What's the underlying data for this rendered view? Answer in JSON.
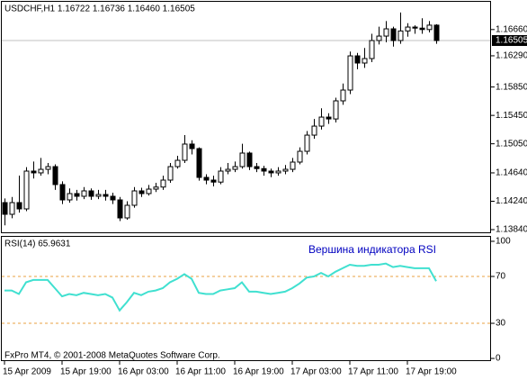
{
  "chart_data": [
    {
      "type": "candlestick",
      "title": "USDCHF,H1  1.16722 1.16736 1.16460 1.16505",
      "categories": [
        "15 Apr 2009",
        null,
        null,
        null,
        null,
        null,
        null,
        null,
        "15 Apr 19:00",
        null,
        null,
        null,
        null,
        null,
        null,
        null,
        "16 Apr 03:00",
        null,
        null,
        null,
        null,
        null,
        null,
        null,
        "16 Apr 11:00",
        null,
        null,
        null,
        null,
        null,
        null,
        null,
        "16 Apr 19:00",
        null,
        null,
        null,
        null,
        null,
        null,
        null,
        "17 Apr 03:00",
        null,
        null,
        null,
        null,
        null,
        null,
        null,
        "17 Apr 11:00",
        null,
        null,
        null,
        null,
        null,
        null,
        null,
        "17 Apr 19:00",
        null,
        null,
        null,
        null
      ],
      "open": [
        1.14221,
        1.14056,
        1.14221,
        1.14132,
        1.14665,
        1.1464,
        1.1469,
        1.14728,
        1.14475,
        1.14259,
        1.14348,
        1.1431,
        1.14386,
        1.1431,
        1.14335,
        1.1431,
        1.14259,
        1.14005,
        1.14183,
        1.14386,
        1.14348,
        1.14411,
        1.1444,
        1.14538,
        1.14728,
        1.14817,
        1.15046,
        1.14982,
        1.14576,
        1.14538,
        1.1451,
        1.14665,
        1.1469,
        1.14728,
        1.14919,
        1.14728,
        1.147,
        1.14665,
        1.1464,
        1.14665,
        1.1469,
        1.14792,
        1.14944,
        1.15172,
        1.15299,
        1.15426,
        1.154,
        1.15655,
        1.15807,
        1.16289,
        1.16188,
        1.16251,
        1.16505,
        1.16568,
        1.1667,
        1.16505,
        1.1664,
        1.16695,
        1.1668,
        1.1666,
        1.16722
      ],
      "high": [
        1.1428,
        1.143,
        1.14601,
        1.1472,
        1.148,
        1.1485,
        1.1478,
        1.1476,
        1.1452,
        1.1442,
        1.144,
        1.1444,
        1.1442,
        1.144,
        1.144,
        1.1436,
        1.143,
        1.1424,
        1.1444,
        1.1443,
        1.1447,
        1.145,
        1.146,
        1.1478,
        1.1488,
        1.15172,
        1.151,
        1.15,
        1.1462,
        1.146,
        1.1472,
        1.1478,
        1.148,
        1.1505,
        1.1494,
        1.1478,
        1.1474,
        1.147,
        1.1472,
        1.1475,
        1.1485,
        1.15,
        1.1523,
        1.154,
        1.1555,
        1.1548,
        1.157,
        1.159,
        1.1635,
        1.1633,
        1.164,
        1.166,
        1.167,
        1.1678,
        1.167,
        1.169,
        1.1675,
        1.1672,
        1.1682,
        1.1678,
        1.16736
      ],
      "low": [
        1.139,
        1.14,
        1.1408,
        1.141,
        1.1456,
        1.146,
        1.1462,
        1.144,
        1.142,
        1.1422,
        1.1425,
        1.1427,
        1.1426,
        1.1427,
        1.1425,
        1.142,
        1.1396,
        1.1398,
        1.1415,
        1.143,
        1.1432,
        1.1437,
        1.144,
        1.145,
        1.147,
        1.1478,
        1.149,
        1.1453,
        1.1448,
        1.1445,
        1.1448,
        1.1462,
        1.1465,
        1.147,
        1.1468,
        1.1465,
        1.146,
        1.1458,
        1.146,
        1.1462,
        1.1465,
        1.1476,
        1.149,
        1.1512,
        1.1525,
        1.1533,
        1.1535,
        1.156,
        1.1575,
        1.161,
        1.1612,
        1.162,
        1.1645,
        1.1648,
        1.1642,
        1.1646,
        1.1656,
        1.166,
        1.166,
        1.1662,
        1.1646
      ],
      "close": [
        1.14056,
        1.14221,
        1.14132,
        1.14665,
        1.1464,
        1.1469,
        1.14728,
        1.14475,
        1.14259,
        1.14348,
        1.1431,
        1.14386,
        1.1431,
        1.14335,
        1.1431,
        1.14259,
        1.14005,
        1.14183,
        1.14386,
        1.14348,
        1.14411,
        1.1444,
        1.14538,
        1.14728,
        1.14817,
        1.15046,
        1.14982,
        1.14576,
        1.14538,
        1.1451,
        1.14665,
        1.1469,
        1.14728,
        1.14919,
        1.14728,
        1.147,
        1.14665,
        1.1464,
        1.14665,
        1.1469,
        1.14792,
        1.14944,
        1.15172,
        1.15299,
        1.15426,
        1.154,
        1.15655,
        1.15807,
        1.16289,
        1.16188,
        1.16251,
        1.16505,
        1.16568,
        1.1667,
        1.16505,
        1.1664,
        1.16695,
        1.1668,
        1.1666,
        1.16722,
        1.16505
      ],
      "up_color": "#ffffff",
      "down_color": "#000000",
      "current_price": 1.16505,
      "ylim": [
        1.13802,
        1.17051
      ],
      "yticks": [
        {
          "value": 1.1384,
          "label": "1.13840"
        },
        {
          "value": 1.1424,
          "label": "1.14240"
        },
        {
          "value": 1.1464,
          "label": "1.14640"
        },
        {
          "value": 1.1505,
          "label": "1.15050"
        },
        {
          "value": 1.1545,
          "label": "1.15450"
        },
        {
          "value": 1.1585,
          "label": "1.15850"
        },
        {
          "value": 1.1629,
          "label": "1.16290"
        },
        {
          "value": 1.1666,
          "label": "1.16660"
        }
      ]
    },
    {
      "type": "line",
      "title": "RSI(14) 65.9631",
      "annotation": "Вершина индикатора RSI",
      "footer": "FxPro MT4, © 2001-2008 MetaQuotes Software Corp.",
      "values": [
        58,
        58,
        55,
        65,
        67,
        67,
        67,
        60,
        53,
        55,
        54,
        56,
        55,
        54,
        55,
        52,
        41,
        48,
        56,
        54,
        57,
        58,
        60,
        65,
        68,
        72,
        68,
        56,
        55,
        55,
        58,
        59,
        60,
        65,
        57,
        57,
        56,
        55,
        56,
        57,
        60,
        64,
        69,
        70,
        73,
        70,
        74,
        77,
        80,
        79,
        79,
        80,
        80,
        81,
        78,
        79,
        78,
        77,
        77,
        77,
        65.9631
      ],
      "color": "#40e0d0",
      "levels": [
        70,
        30
      ],
      "level_color": "#e8a040",
      "ylim": [
        -1.5,
        104.6
      ],
      "yticks": [
        0,
        30,
        70,
        100
      ]
    }
  ]
}
